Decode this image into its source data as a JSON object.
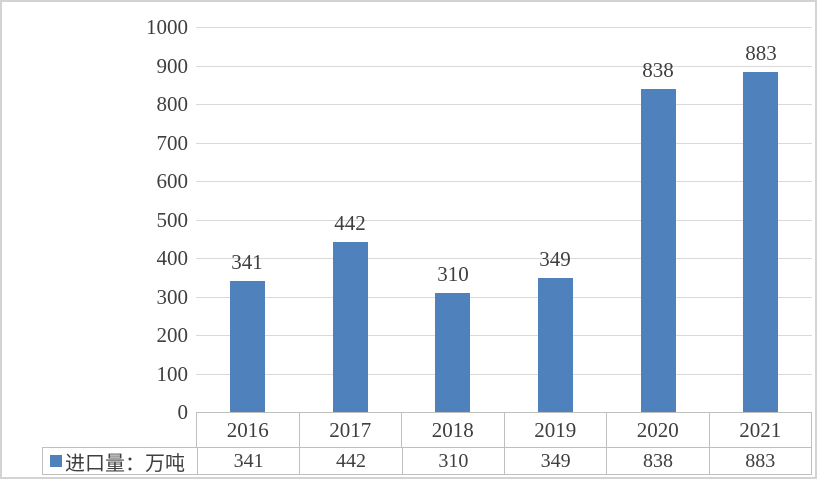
{
  "chart_data": {
    "type": "bar",
    "title": "",
    "categories": [
      "2016",
      "2017",
      "2018",
      "2019",
      "2020",
      "2021"
    ],
    "series": [
      {
        "name": "进口量：万吨",
        "values": [
          341,
          442,
          310,
          349,
          838,
          883
        ]
      }
    ],
    "yticks": [
      0,
      100,
      200,
      300,
      400,
      500,
      600,
      700,
      800,
      900,
      1000
    ],
    "ylim": [
      0,
      1000
    ],
    "grid": "horizontal",
    "data_labels": true,
    "data_table": true,
    "legend_position": "bottom-left-table-cell"
  },
  "legend": {
    "label": "进口量：万吨"
  },
  "colors": {
    "bar": "#4f81bd",
    "gridline": "#d9d9d9",
    "table_border": "#bfbfbf",
    "text": "#3f3f3f",
    "frame_border": "#d3d3d3",
    "background": "#ffffff"
  }
}
